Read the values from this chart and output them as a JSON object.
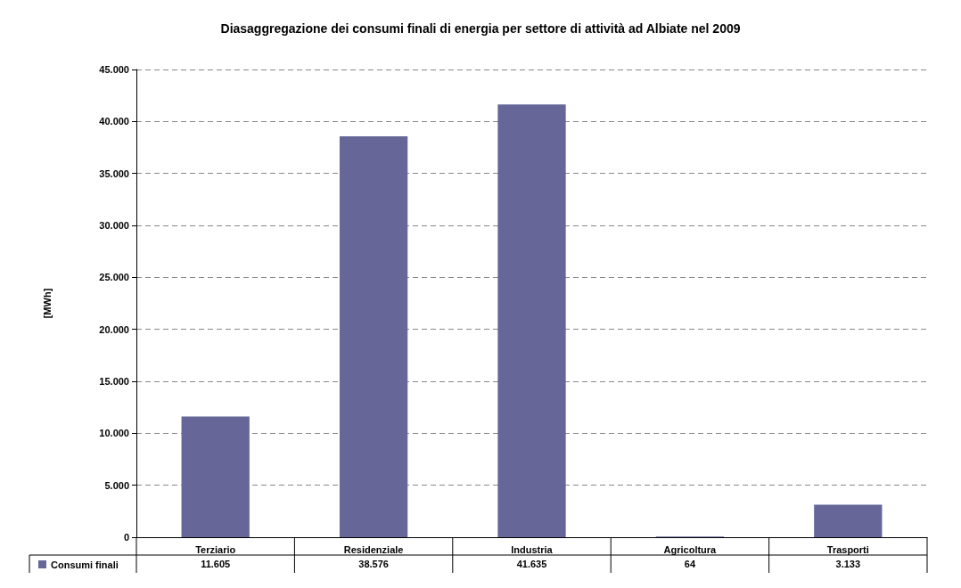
{
  "chart_data": {
    "type": "bar",
    "title": "Diasaggregazione dei consumi finali di energia per settore di attività ad Albiate nel 2009",
    "ylabel": "[MWh]",
    "categories": [
      "Terziario",
      "Residenziale",
      "Industria",
      "Agricoltura",
      "Trasporti"
    ],
    "series": [
      {
        "name": "Consumi finali",
        "color": "#666699",
        "values": [
          11605,
          38576,
          41635,
          64,
          3133
        ],
        "value_labels": [
          "11.605",
          "38.576",
          "41.635",
          "64",
          "3.133"
        ]
      }
    ],
    "ylim": [
      0,
      45000
    ],
    "yticks": [
      {
        "value": 0,
        "label": "0"
      },
      {
        "value": 5000,
        "label": "5.000"
      },
      {
        "value": 10000,
        "label": "10.000"
      },
      {
        "value": 15000,
        "label": "15.000"
      },
      {
        "value": 20000,
        "label": "20.000"
      },
      {
        "value": 25000,
        "label": "25.000"
      },
      {
        "value": 30000,
        "label": "30.000"
      },
      {
        "value": 35000,
        "label": "35.000"
      },
      {
        "value": 40000,
        "label": "40.000"
      },
      {
        "value": 45000,
        "label": "45.000"
      }
    ],
    "grid": "y",
    "legend": "bottom left"
  }
}
